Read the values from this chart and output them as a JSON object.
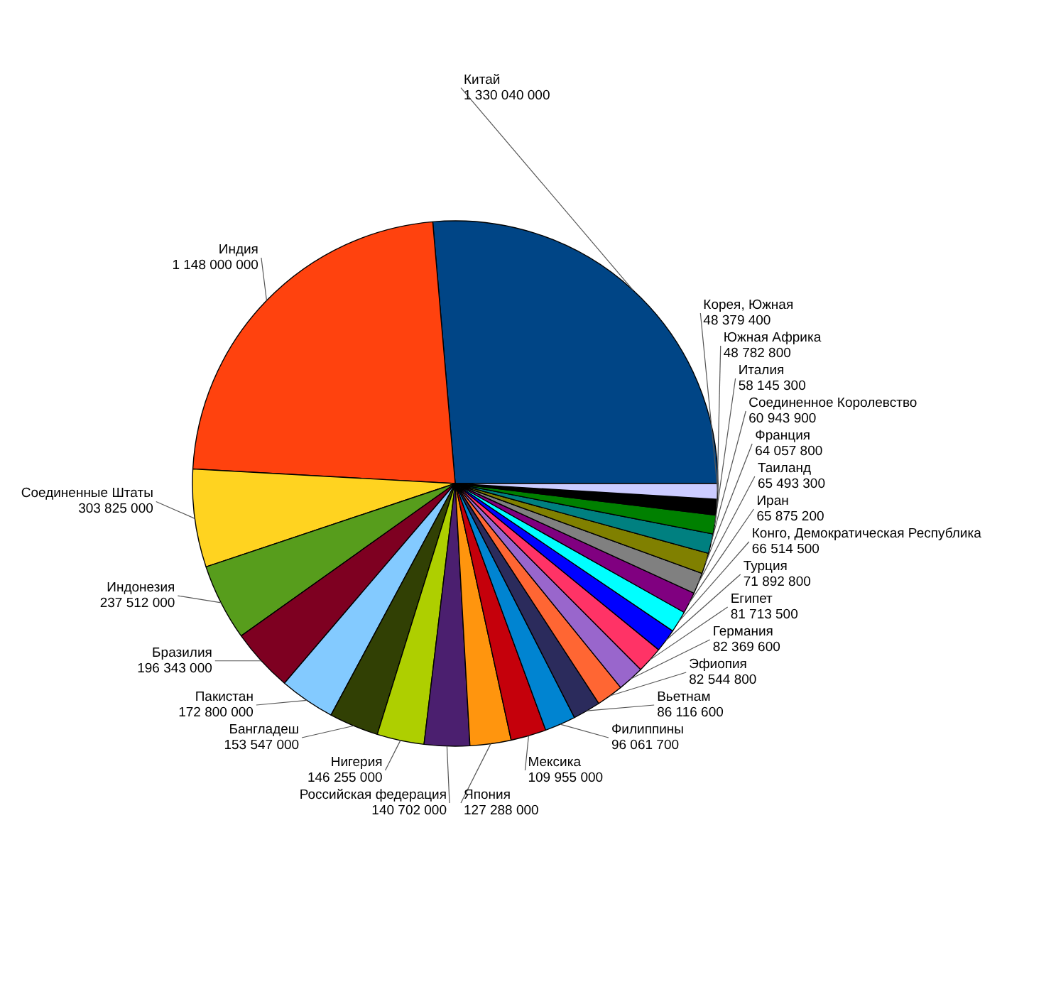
{
  "chart_data": {
    "type": "pie",
    "categories": [
      "Китай",
      "Индия",
      "Соединенные Штаты",
      "Индонезия",
      "Бразилия",
      "Пакистан",
      "Бангладеш",
      "Нигерия",
      "Российская федерация",
      "Япония",
      "Мексика",
      "Филиппины",
      "Вьетнам",
      "Эфиопия",
      "Германия",
      "Египет",
      "Турция",
      "Конго, Демократическая Республика",
      "Иран",
      "Таиланд",
      "Франция",
      "Соединенное Королевство",
      "Италия",
      "Южная Африка",
      "Корея, Южная"
    ],
    "values": [
      1330040000,
      1148000000,
      303825000,
      237512000,
      196343000,
      172800000,
      153547000,
      146255000,
      140702000,
      127288000,
      109955000,
      96061700,
      86116600,
      82544800,
      82369600,
      81713500,
      71892800,
      66514500,
      65875200,
      65493300,
      64057800,
      60943900,
      58145300,
      48782800,
      48379400
    ],
    "value_labels": [
      "1 330 040 000",
      "1 148 000 000",
      "303 825 000",
      "237 512 000",
      "196 343 000",
      "172 800 000",
      "153 547 000",
      "146 255 000",
      "140 702 000",
      "127 288 000",
      "109 955 000",
      "96 061 700",
      "86 116 600",
      "82 544 800",
      "82 369 600",
      "81 713 500",
      "71 892 800",
      "66 514 500",
      "65 875 200",
      "65 493 300",
      "64 057 800",
      "60 943 900",
      "58 145 300",
      "48 782 800",
      "48 379 400"
    ],
    "colors": [
      "#004586",
      "#ff420e",
      "#ffd320",
      "#579d1c",
      "#7e0021",
      "#83caff",
      "#314004",
      "#aecf00",
      "#4b1f6f",
      "#ff950e",
      "#c5000b",
      "#0084d1",
      "#2b2b5c",
      "#ff6633",
      "#9966cc",
      "#ff3366",
      "#0000ff",
      "#00ffff",
      "#800080",
      "#808080",
      "#808000",
      "#008080",
      "#008000",
      "#000000",
      "#ccccff"
    ]
  }
}
